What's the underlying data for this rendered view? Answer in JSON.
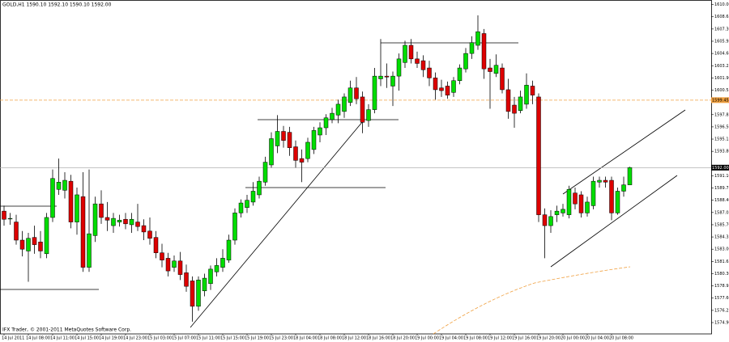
{
  "chart_data": {
    "type": "candlestick",
    "title": "GOLD,H1  1590.10 1592.10 1590.10 1592.00",
    "footer": "IFX Trader, © 2001-2011 MetaQuotes Software Corp.",
    "up_color": "#00dd00",
    "down_color": "#dd0000",
    "categories": [
      "14 Jul 2011",
      null,
      null,
      null,
      "14 Jul 08:00",
      null,
      null,
      null,
      "14 Jul 11:00",
      null,
      null,
      null,
      "14 Jul 15:00",
      null,
      null,
      null,
      "14 Jul 19:00",
      null,
      null,
      null,
      "14 Jul 23:00",
      null,
      null,
      null,
      "15 Jul 03:00",
      null,
      null,
      null,
      "15 Jul 07:00",
      null,
      null,
      null,
      "15 Jul 11:00",
      null,
      null,
      null,
      "15 Jul 15:00",
      null,
      null,
      null,
      "15 Jul 19:00",
      null,
      null,
      null,
      "15 Jul 23:00",
      null,
      null,
      null,
      "18 Jul 04:00",
      null,
      null,
      null,
      "18 Jul 08:00",
      null,
      null,
      null,
      "18 Jul 12:00",
      null,
      null,
      null,
      "18 Jul 16:00",
      null,
      null,
      null,
      "18 Jul 20:00",
      null,
      null,
      null,
      "19 Jul 00:00",
      null,
      null,
      null,
      "19 Jul 04:00",
      null,
      null,
      null,
      "19 Jul 08:00",
      null,
      null,
      null,
      "19 Jul 12:00",
      null,
      null,
      null,
      "19 Jul 16:00",
      null,
      null,
      null,
      "19 Jul 20:00",
      null,
      null,
      null,
      "20 Jul 00:00",
      null,
      null,
      null,
      "20 Jul 04:00",
      null,
      null,
      null,
      "20 Jul 08:00",
      null,
      null,
      null
    ],
    "open": [
      1587.2,
      1586.4,
      1586.0,
      1584.0,
      1582.8,
      1584.3,
      1583.8,
      1582.5,
      1586.5,
      1589.6,
      1589.5,
      1590.5,
      1586.0,
      1588.8,
      1581.0,
      1584.5,
      1588.0,
      1586.5,
      1585.6,
      1586.0,
      1586.3,
      1585.7,
      1586.0,
      1585.6,
      1585.0,
      1584.3,
      1582.6,
      1582.0,
      1581.0,
      1581.7,
      1580.4,
      1579.5,
      1576.7,
      1578.4,
      1579.2,
      1580.5,
      1581.0,
      1581.8,
      1584.0,
      1587.0,
      1587.6,
      1588.2,
      1589.0,
      1590.4,
      1592.3,
      1594.4,
      1596.0,
      1595.9,
      1594.3,
      1593.0,
      1593.0,
      1594.0,
      1595.6,
      1596.4,
      1597.3,
      1597.8,
      1598.2,
      1599.2,
      1600.8,
      1599.8,
      1597.2,
      1598.4,
      1601.8,
      1602.1,
      1601.0,
      1602.1,
      1603.6,
      1605.5,
      1604.0,
      1603.8,
      1603.0,
      1601.9,
      1600.8,
      1601.0,
      1600.3,
      1601.6,
      1602.9,
      1604.6,
      1605.5,
      1606.8,
      1603.0,
      1602.4,
      1603.0,
      1600.6,
      1598.9,
      1598.3,
      1599.0,
      1601.0,
      1599.8,
      1586.8,
      1585.6,
      1586.8,
      1587.0,
      1586.8,
      1589.2,
      1589.0,
      1587.0,
      1587.8,
      1590.4,
      1590.6,
      1590.6,
      1587.0,
      1589.4,
      1590.1
    ],
    "high": [
      1587.8,
      1587.0,
      1586.8,
      1585.0,
      1584.8,
      1585.6,
      1585.0,
      1587.0,
      1591.8,
      1593.0,
      1591.5,
      1591.2,
      1589.8,
      1591.5,
      1591.8,
      1588.8,
      1589.5,
      1588.2,
      1587.0,
      1586.8,
      1587.0,
      1587.0,
      1588.0,
      1586.3,
      1586.5,
      1585.0,
      1583.6,
      1582.6,
      1582.3,
      1582.7,
      1581.3,
      1580.0,
      1580.0,
      1580.3,
      1581.2,
      1582.0,
      1583.0,
      1584.6,
      1587.5,
      1588.5,
      1589.0,
      1590.4,
      1591.0,
      1593.2,
      1595.9,
      1597.8,
      1596.6,
      1596.5,
      1595.0,
      1594.0,
      1595.3,
      1596.5,
      1597.0,
      1597.9,
      1598.6,
      1599.5,
      1600.2,
      1601.6,
      1602.0,
      1600.4,
      1599.0,
      1603.0,
      1606.2,
      1603.5,
      1602.6,
      1604.6,
      1606.0,
      1606.2,
      1604.8,
      1604.4,
      1603.8,
      1602.5,
      1601.7,
      1601.5,
      1602.0,
      1603.4,
      1605.2,
      1606.5,
      1608.8,
      1607.3,
      1604.0,
      1604.5,
      1603.5,
      1601.8,
      1599.8,
      1600.5,
      1602.4,
      1601.6,
      1600.2,
      1587.5,
      1587.3,
      1587.8,
      1588.0,
      1590.0,
      1589.8,
      1589.4,
      1588.8,
      1591.0,
      1591.0,
      1591.0,
      1591.0,
      1589.8,
      1591.0,
      1592.1
    ],
    "low": [
      1585.6,
      1585.7,
      1583.5,
      1582.2,
      1579.4,
      1582.5,
      1582.0,
      1582.0,
      1586.0,
      1589.0,
      1588.6,
      1585.3,
      1584.6,
      1580.5,
      1580.5,
      1583.8,
      1585.8,
      1585.0,
      1584.8,
      1585.5,
      1585.2,
      1584.8,
      1585.0,
      1584.0,
      1583.5,
      1582.0,
      1581.0,
      1580.0,
      1580.5,
      1579.6,
      1578.3,
      1575.0,
      1576.2,
      1577.8,
      1578.5,
      1580.0,
      1580.5,
      1581.5,
      1583.5,
      1586.5,
      1587.0,
      1587.8,
      1588.6,
      1590.0,
      1592.0,
      1593.6,
      1594.2,
      1593.3,
      1592.0,
      1590.4,
      1592.6,
      1593.5,
      1594.8,
      1595.6,
      1596.9,
      1596.9,
      1597.5,
      1598.8,
      1599.0,
      1595.8,
      1596.5,
      1598.0,
      1601.0,
      1600.8,
      1598.8,
      1600.5,
      1603.0,
      1603.5,
      1603.0,
      1602.0,
      1601.0,
      1599.5,
      1599.8,
      1599.6,
      1599.8,
      1601.2,
      1602.5,
      1604.0,
      1605.0,
      1601.8,
      1598.5,
      1602.0,
      1600.2,
      1597.4,
      1596.4,
      1598.0,
      1598.5,
      1599.0,
      1586.0,
      1582.0,
      1584.8,
      1586.0,
      1586.6,
      1586.4,
      1587.4,
      1586.5,
      1586.6,
      1587.4,
      1589.8,
      1589.8,
      1586.2,
      1586.8,
      1588.8,
      1590.1
    ],
    "close": [
      1586.3,
      1586.4,
      1584.0,
      1583.0,
      1584.2,
      1583.5,
      1582.8,
      1586.5,
      1590.8,
      1590.4,
      1590.6,
      1586.0,
      1589.0,
      1581.0,
      1584.7,
      1588.0,
      1586.5,
      1586.2,
      1586.4,
      1586.2,
      1585.8,
      1586.3,
      1585.5,
      1584.9,
      1584.2,
      1582.6,
      1581.8,
      1580.6,
      1581.7,
      1580.2,
      1578.9,
      1576.7,
      1579.6,
      1579.8,
      1580.8,
      1581.2,
      1582.0,
      1584.0,
      1587.0,
      1588.1,
      1588.4,
      1589.4,
      1590.5,
      1592.6,
      1595.2,
      1596.0,
      1595.0,
      1594.2,
      1592.8,
      1592.6,
      1594.8,
      1596.1,
      1596.4,
      1597.5,
      1598.0,
      1599.0,
      1599.8,
      1600.8,
      1599.6,
      1597.0,
      1598.4,
      1602.1,
      1602.1,
      1602.0,
      1602.1,
      1604.0,
      1605.5,
      1604.0,
      1603.5,
      1602.8,
      1601.9,
      1600.6,
      1600.5,
      1600.0,
      1601.6,
      1603.0,
      1604.6,
      1605.8,
      1607.0,
      1602.9,
      1602.6,
      1603.3,
      1600.6,
      1598.2,
      1598.0,
      1599.8,
      1601.1,
      1600.0,
      1586.8,
      1585.6,
      1586.6,
      1587.2,
      1587.4,
      1589.6,
      1588.0,
      1587.0,
      1588.2,
      1590.5,
      1590.6,
      1590.4,
      1587.0,
      1589.4,
      1590.1,
      1592.0
    ],
    "ylim": [
      1573.65,
      1610.5
    ],
    "yticks": [
      {
        "value": 1574.9,
        "label": "1574.90"
      },
      {
        "value": 1576.25,
        "label": "1576.25"
      },
      {
        "value": 1577.6,
        "label": "1577.60"
      },
      {
        "value": 1578.95,
        "label": "1578.95"
      },
      {
        "value": 1580.3,
        "label": "1580.30"
      },
      {
        "value": 1581.65,
        "label": "1581.65"
      },
      {
        "value": 1583.0,
        "label": "1583.00"
      },
      {
        "value": 1584.35,
        "label": "1584.35"
      },
      {
        "value": 1585.7,
        "label": "1585.70"
      },
      {
        "value": 1587.05,
        "label": "1587.05"
      },
      {
        "value": 1588.4,
        "label": "1588.40"
      },
      {
        "value": 1589.75,
        "label": "1589.75"
      },
      {
        "value": 1591.1,
        "label": "1591.10"
      },
      {
        "value": 1593.8,
        "label": "1593.80"
      },
      {
        "value": 1595.15,
        "label": "1595.15"
      },
      {
        "value": 1596.5,
        "label": "1596.50"
      },
      {
        "value": 1597.85,
        "label": "1597.85"
      },
      {
        "value": 1600.55,
        "label": "1600.55"
      },
      {
        "value": 1601.9,
        "label": "1601.90"
      },
      {
        "value": 1603.25,
        "label": "1603.25"
      },
      {
        "value": 1604.6,
        "label": "1604.60"
      },
      {
        "value": 1605.95,
        "label": "1605.95"
      },
      {
        "value": 1607.3,
        "label": "1607.30"
      },
      {
        "value": 1608.65,
        "label": "1608.65"
      },
      {
        "value": 1610.0,
        "label": "1610.00"
      }
    ],
    "current_price": {
      "value": 1592.0,
      "label": "1592.00"
    },
    "level_line": {
      "value": 1599.45,
      "label": "1599.45"
    }
  }
}
